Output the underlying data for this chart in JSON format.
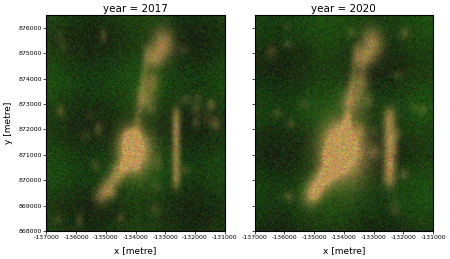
{
  "title_left": "year = 2017",
  "title_right": "year = 2020",
  "xlabel": "x [metre]",
  "ylabel": "y [metre]",
  "xlim": [
    -137000,
    -131000
  ],
  "ylim": [
    868000,
    876500
  ],
  "xticks": [
    -137000,
    -136000,
    -135000,
    -134000,
    -133000,
    -132000,
    -131000
  ],
  "yticks": [
    868000,
    869000,
    870000,
    871000,
    872000,
    873000,
    874000,
    875000,
    876000
  ],
  "figsize": [
    4.5,
    2.59
  ],
  "dpi": 100,
  "seed": 7
}
